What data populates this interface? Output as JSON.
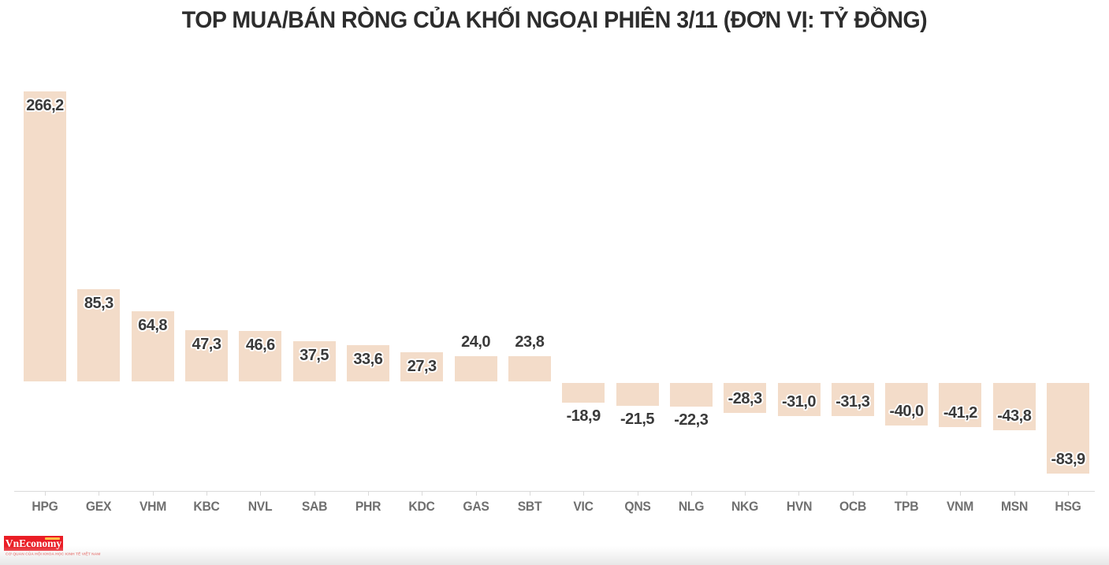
{
  "chart_data": {
    "type": "bar",
    "title": "TOP MUA/BÁN RÒNG CỦA KHỐI NGOẠI PHIÊN 3/11 (ĐƠN VỊ: TỶ ĐỒNG)",
    "xlabel": "",
    "ylabel": "",
    "unit": "tỷ đồng",
    "categories": [
      "HPG",
      "GEX",
      "VHM",
      "KBC",
      "NVL",
      "SAB",
      "PHR",
      "KDC",
      "GAS",
      "SBT",
      "VIC",
      "QNS",
      "NLG",
      "NKG",
      "HVN",
      "OCB",
      "TPB",
      "VNM",
      "MSN",
      "HSG"
    ],
    "values": [
      266.2,
      85.3,
      64.8,
      47.3,
      46.6,
      37.5,
      33.6,
      27.3,
      24.0,
      23.8,
      -18.9,
      -21.5,
      -22.3,
      -28.3,
      -31.0,
      -31.3,
      -40.0,
      -41.2,
      -43.8,
      -83.9
    ],
    "value_labels": [
      "266,2",
      "85,3",
      "64,8",
      "47,3",
      "46,6",
      "37,5",
      "33,6",
      "27,3",
      "24,0",
      "23,8",
      "-18,9",
      "-21,5",
      "-22,3",
      "-28,3",
      "-31,0",
      "-31,3",
      "-40,0",
      "-41,2",
      "-43,8",
      "-83,9"
    ],
    "ylim": [
      -100,
      280
    ],
    "baseline": 0,
    "grid": false,
    "legend": "none",
    "bar_color": "#f3dcc9",
    "value_label_color": "#3a3a3a",
    "category_label_color": "#6f6f6f",
    "axis_color": "#d9d9d9",
    "title_color": "#2d2d2d"
  },
  "footer": {
    "logo_text": "VnEconomy",
    "logo_tagline": "CƠ QUAN CỦA HỘI KHOA HỌC KINH TẾ VIỆT NAM",
    "logo_color": "#ea1d25",
    "logo_accent_color": "#ffd24a",
    "tagline_color": "#e8443f"
  }
}
